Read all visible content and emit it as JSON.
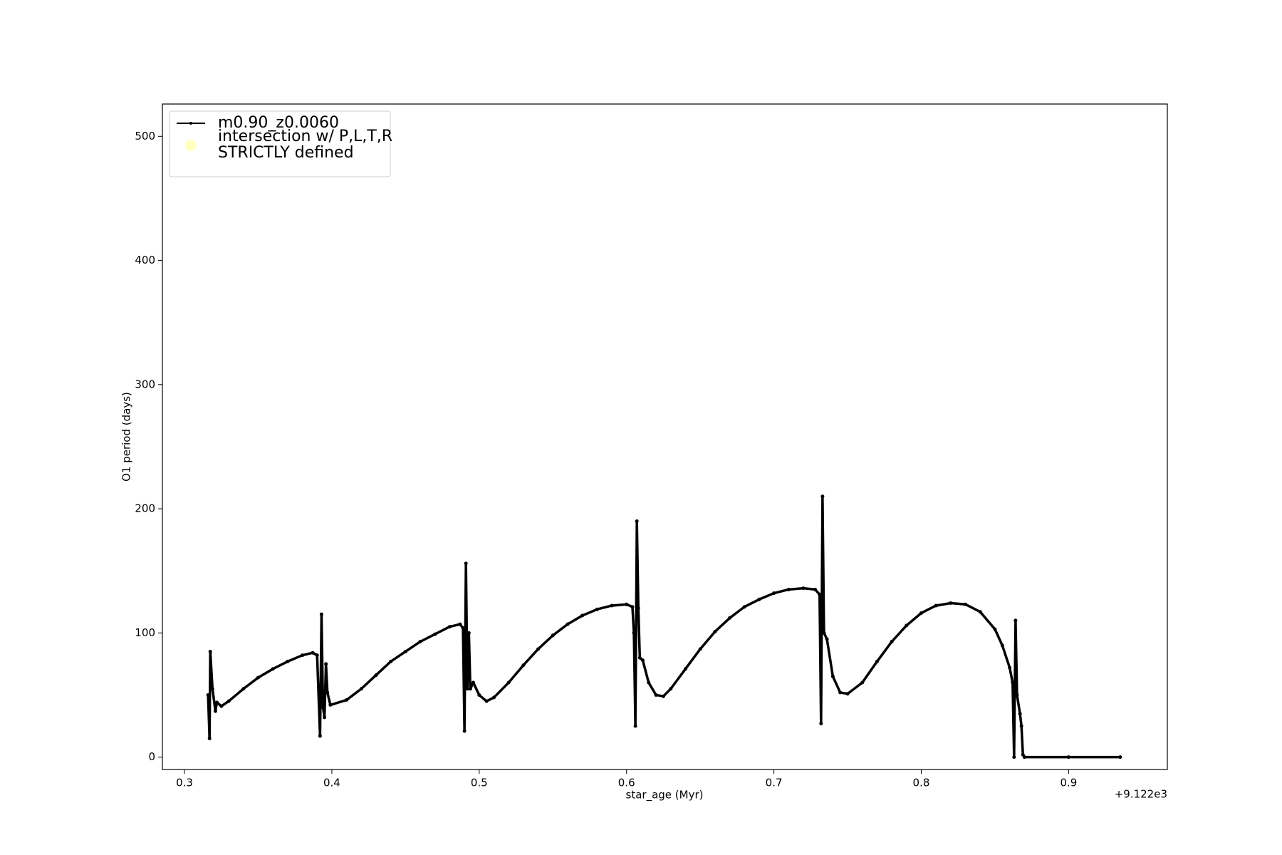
{
  "chart_data": {
    "type": "line",
    "x_label": "star_age (Myr)",
    "y_label": "O1 period (days)",
    "x_offset_label": "+9.122e3",
    "xlim": [
      9122.285,
      9122.967
    ],
    "ylim": [
      -10,
      526
    ],
    "xticks": [
      {
        "value": 9122.3,
        "label": "0.3"
      },
      {
        "value": 9122.4,
        "label": "0.4"
      },
      {
        "value": 9122.5,
        "label": "0.5"
      },
      {
        "value": 9122.6,
        "label": "0.6"
      },
      {
        "value": 9122.7,
        "label": "0.7"
      },
      {
        "value": 9122.8,
        "label": "0.8"
      },
      {
        "value": 9122.9,
        "label": "0.9"
      }
    ],
    "yticks": [
      0,
      100,
      200,
      300,
      400,
      500
    ],
    "grid": false,
    "legend": "upper left",
    "series": [
      {
        "name": "m0.90_z0.0060",
        "color": "#000000",
        "marker": "dot",
        "x": [
          9122.316,
          9122.317,
          9122.3175,
          9122.319,
          9122.321,
          9122.322,
          9122.325,
          9122.33,
          9122.34,
          9122.35,
          9122.36,
          9122.37,
          9122.38,
          9122.387,
          9122.39,
          9122.392,
          9122.393,
          9122.394,
          9122.395,
          9122.396,
          9122.397,
          9122.399,
          9122.41,
          9122.42,
          9122.43,
          9122.44,
          9122.45,
          9122.46,
          9122.47,
          9122.48,
          9122.487,
          9122.489,
          9122.49,
          9122.491,
          9122.492,
          9122.493,
          9122.494,
          9122.496,
          9122.5,
          9122.505,
          9122.51,
          9122.52,
          9122.53,
          9122.54,
          9122.55,
          9122.56,
          9122.57,
          9122.58,
          9122.59,
          9122.6,
          9122.604,
          9122.605,
          9122.606,
          9122.607,
          9122.608,
          9122.609,
          9122.611,
          9122.615,
          9122.62,
          9122.625,
          9122.63,
          9122.64,
          9122.65,
          9122.66,
          9122.67,
          9122.68,
          9122.69,
          9122.7,
          9122.71,
          9122.72,
          9122.728,
          9122.731,
          9122.732,
          9122.733,
          9122.734,
          9122.736,
          9122.74,
          9122.745,
          9122.75,
          9122.76,
          9122.77,
          9122.78,
          9122.79,
          9122.8,
          9122.81,
          9122.82,
          9122.83,
          9122.84,
          9122.85,
          9122.855,
          9122.86,
          9122.862,
          9122.863,
          9122.864,
          9122.865,
          9122.867,
          9122.868,
          9122.869,
          9122.87,
          9122.9,
          9122.935
        ],
        "values": [
          50,
          15,
          85,
          55,
          37,
          44,
          41,
          45,
          55,
          64,
          71,
          77,
          82,
          84,
          82,
          17,
          115,
          40,
          32,
          75,
          52,
          42,
          46,
          55,
          66,
          77,
          85,
          93,
          99,
          105,
          107,
          104,
          21,
          156,
          55,
          100,
          55,
          60,
          50,
          45,
          48,
          60,
          74,
          87,
          98,
          107,
          114,
          119,
          122,
          123,
          121,
          100,
          25,
          190,
          120,
          80,
          78,
          60,
          50,
          49,
          55,
          71,
          87,
          101,
          112,
          121,
          127,
          132,
          135,
          136,
          135,
          131,
          27,
          210,
          100,
          95,
          65,
          52,
          51,
          60,
          77,
          93,
          106,
          116,
          122,
          124,
          123,
          117,
          103,
          90,
          72,
          60,
          0,
          110,
          50,
          35,
          25,
          2,
          0,
          0,
          0
        ]
      },
      {
        "name": "intersection w/ P,L,T,R\nSTRICTLY defined",
        "color": "#ffffc0",
        "marker": "circle",
        "x": [],
        "values": []
      }
    ]
  }
}
